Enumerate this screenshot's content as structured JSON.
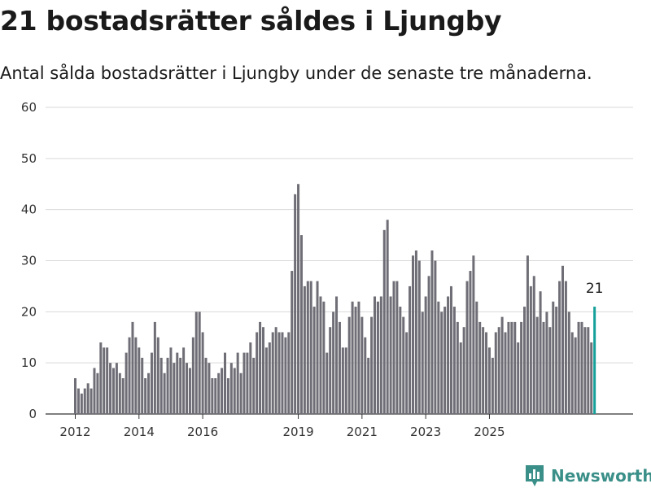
{
  "header": {
    "title": "21 bostadsrätter såldes i Ljungby",
    "subtitle": "Antal sålda bostadsrätter i Ljungby under de senaste tre månaderna."
  },
  "brand": {
    "name": "Newsworthy",
    "logo_icon": "bar-chart-logo-icon",
    "color": "#3a8f88"
  },
  "colors": {
    "bar": "#6f6e76",
    "highlight": "#15a09a",
    "grid": "#d9d9d9"
  },
  "chart_data": {
    "type": "bar",
    "title": "",
    "xlabel": "",
    "ylabel": "",
    "ylim": [
      0,
      60
    ],
    "yticks": [
      0,
      10,
      20,
      30,
      40,
      50,
      60
    ],
    "xticks": [
      {
        "label": "2012",
        "index": 0
      },
      {
        "label": "2014",
        "index": 20
      },
      {
        "label": "2016",
        "index": 40
      },
      {
        "label": "2019",
        "index": 70
      },
      {
        "label": "2021",
        "index": 90
      },
      {
        "label": "2023",
        "index": 110
      },
      {
        "label": "2025",
        "index": 130
      }
    ],
    "grid": true,
    "legend": "none",
    "values": [
      7,
      5,
      4,
      5,
      6,
      5,
      9,
      8,
      14,
      13,
      13,
      10,
      9,
      10,
      8,
      7,
      12,
      15,
      18,
      15,
      13,
      11,
      7,
      8,
      12,
      18,
      15,
      11,
      8,
      11,
      13,
      10,
      12,
      11,
      13,
      10,
      9,
      15,
      20,
      20,
      16,
      11,
      10,
      7,
      7,
      8,
      9,
      12,
      7,
      10,
      9,
      12,
      8,
      12,
      12,
      14,
      11,
      16,
      18,
      17,
      13,
      14,
      16,
      17,
      16,
      16,
      15,
      16,
      28,
      43,
      45,
      35,
      25,
      26,
      26,
      21,
      26,
      23,
      22,
      12,
      17,
      20,
      23,
      18,
      13,
      13,
      19,
      22,
      21,
      22,
      19,
      15,
      11,
      19,
      23,
      22,
      23,
      36,
      38,
      23,
      26,
      26,
      21,
      19,
      16,
      25,
      31,
      32,
      30,
      20,
      23,
      27,
      32,
      30,
      22,
      20,
      21,
      23,
      25,
      21,
      18,
      14,
      17,
      26,
      28,
      31,
      22,
      18,
      17,
      16,
      13,
      11,
      16,
      17,
      19,
      16,
      18,
      18,
      18,
      14,
      18,
      21,
      31,
      25,
      27,
      19,
      24,
      18,
      20,
      17,
      22,
      21,
      26,
      29,
      26,
      20,
      16,
      15,
      18,
      18,
      17,
      17,
      14,
      21
    ],
    "highlight": {
      "last": 1,
      "label": "21"
    }
  }
}
